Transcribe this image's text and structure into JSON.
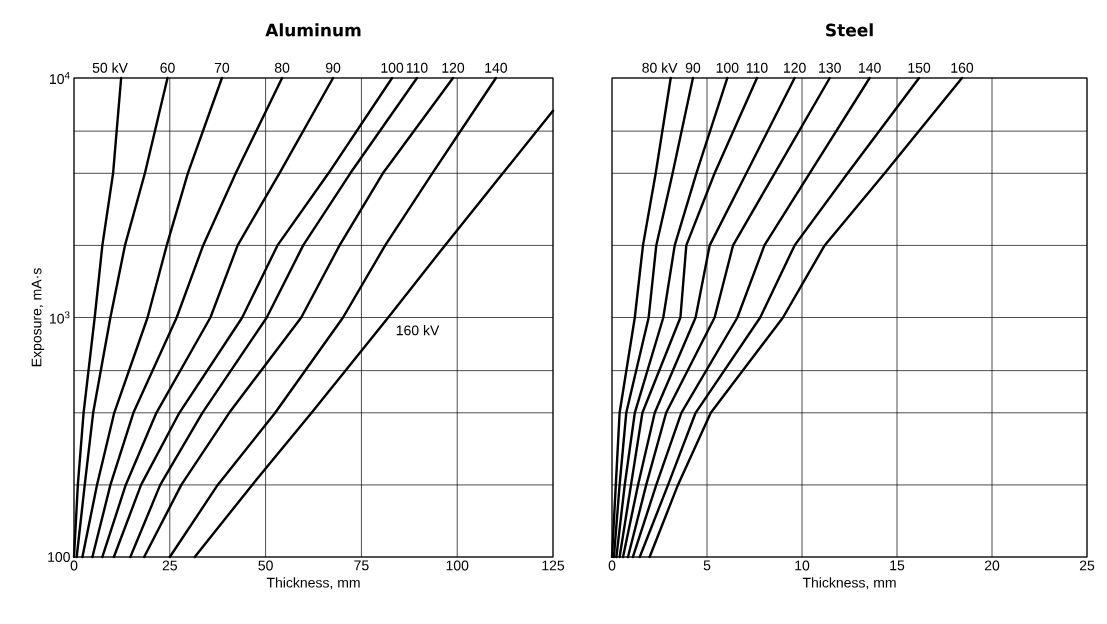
{
  "chart_data": [
    {
      "type": "line",
      "title": "Aluminum",
      "xlabel": "Thickness, mm",
      "ylabel": "Exposure, mA·s",
      "log": "y",
      "grid": true,
      "xlim": [
        0,
        125
      ],
      "xticks": [
        0,
        25,
        50,
        75,
        100,
        125
      ],
      "ylim": [
        100,
        10000
      ],
      "yticks": [
        100,
        {
          "value": 200,
          "label": null
        },
        {
          "value": 400,
          "label": null
        },
        {
          "value": 600,
          "label": null
        },
        {
          "value": 1000,
          "label": "10$^{3}$"
        },
        {
          "value": 2000,
          "label": null
        },
        {
          "value": 4000,
          "label": null
        },
        {
          "value": 6000,
          "label": null
        },
        {
          "value": 10000,
          "label": "10$^{4}$"
        }
      ],
      "series": [
        {
          "name": "50 kV",
          "color": "#000000",
          "x": [
            0,
            1.0,
            2.5,
            5.4,
            7.4,
            10.2,
            12.3
          ],
          "values": [
            100,
            200,
            400,
            1000,
            2000,
            4000,
            10000
          ]
        },
        {
          "name": "60",
          "color": "#000000",
          "x": [
            0.7,
            2.8,
            5.0,
            9.5,
            13.3,
            18.5,
            24.4
          ],
          "values": [
            100,
            200,
            400,
            1000,
            2000,
            4000,
            10000
          ]
        },
        {
          "name": "70",
          "color": "#000000",
          "x": [
            2.2,
            6.0,
            10.5,
            19.2,
            24.2,
            29.7,
            38.6
          ],
          "values": [
            100,
            200,
            400,
            1000,
            2000,
            4000,
            10000
          ]
        },
        {
          "name": "80",
          "color": "#000000",
          "x": [
            4.8,
            9.5,
            15.5,
            26.8,
            33.7,
            42.2,
            54.3
          ],
          "values": [
            100,
            200,
            400,
            1000,
            2000,
            4000,
            10000
          ]
        },
        {
          "name": "90",
          "color": "#000000",
          "x": [
            7.4,
            13.5,
            21.5,
            35.6,
            42.7,
            53.6,
            67.6
          ],
          "values": [
            100,
            200,
            400,
            1000,
            2000,
            4000,
            10000
          ]
        },
        {
          "name": "100",
          "color": "#000000",
          "x": [
            10.4,
            17.5,
            27.5,
            43.9,
            53.1,
            66.4,
            83.0
          ],
          "values": [
            100,
            200,
            400,
            1000,
            2000,
            4000,
            10000
          ]
        },
        {
          "name": "110",
          "color": "#000000",
          "x": [
            14.7,
            22.5,
            33.5,
            50.3,
            59.8,
            72.1,
            89.5
          ],
          "values": [
            100,
            200,
            400,
            1000,
            2000,
            4000,
            10000
          ]
        },
        {
          "name": "120",
          "color": "#000000",
          "x": [
            18.3,
            28.0,
            40.5,
            59.3,
            69.3,
            80.6,
            98.9
          ],
          "values": [
            100,
            200,
            400,
            1000,
            2000,
            4000,
            10000
          ]
        },
        {
          "name": "140",
          "color": "#000000",
          "x": [
            25.0,
            37.5,
            52.5,
            70.2,
            81.2,
            93.5,
            110.1
          ],
          "values": [
            100,
            200,
            400,
            1000,
            2000,
            4000,
            10000
          ]
        },
        {
          "name": "160 kV",
          "color": "#000000",
          "x": [
            31.5,
            46.5,
            62.0,
            82.0,
            96.8,
            111.9,
            125
          ],
          "values": [
            100,
            200,
            400,
            1000,
            2000,
            4000,
            7300
          ]
        }
      ]
    },
    {
      "type": "line",
      "title": "Steel",
      "xlabel": "Thickness, mm",
      "log": "y",
      "grid": true,
      "tick_labels": "x",
      "xlim": [
        0,
        25
      ],
      "xticks": [
        0,
        5,
        10,
        15,
        20,
        25
      ],
      "ylim": [
        100,
        10000
      ],
      "yticks": [
        {
          "value": 100,
          "label": null
        },
        {
          "value": 200,
          "label": null
        },
        {
          "value": 400,
          "label": null
        },
        {
          "value": 600,
          "label": null
        },
        {
          "value": 1000,
          "label": null
        },
        {
          "value": 2000,
          "label": null
        },
        {
          "value": 4000,
          "label": null
        },
        {
          "value": 6000,
          "label": null
        },
        {
          "value": 10000,
          "label": null
        }
      ],
      "series": [
        {
          "name": "80 kV",
          "color": "#000000",
          "x": [
            0.0,
            0.2,
            0.4,
            1.2,
            1.63,
            2.3,
            3.09
          ],
          "values": [
            100,
            200,
            400,
            1000,
            2000,
            4000,
            10000
          ]
        },
        {
          "name": "90",
          "color": "#000000",
          "x": [
            0.1,
            0.4,
            0.75,
            1.93,
            2.33,
            3.19,
            4.26
          ],
          "values": [
            100,
            200,
            400,
            1000,
            2000,
            4000,
            10000
          ]
        },
        {
          "name": "100",
          "color": "#000000",
          "x": [
            0.23,
            0.67,
            1.2,
            2.7,
            3.3,
            4.44,
            6.07
          ],
          "values": [
            100,
            200,
            400,
            1000,
            2000,
            4000,
            10000
          ]
        },
        {
          "name": "110",
          "color": "#000000",
          "x": [
            0.4,
            1.0,
            1.6,
            3.6,
            3.91,
            5.4,
            7.63
          ],
          "values": [
            100,
            200,
            400,
            1000,
            2000,
            4000,
            10000
          ]
        },
        {
          "name": "120",
          "color": "#000000",
          "x": [
            0.58,
            1.37,
            2.25,
            4.4,
            5.14,
            7.07,
            9.61
          ],
          "values": [
            100,
            200,
            400,
            1000,
            2000,
            4000,
            10000
          ]
        },
        {
          "name": "130",
          "color": "#000000",
          "x": [
            0.84,
            1.8,
            2.85,
            5.4,
            6.37,
            8.56,
            11.46
          ],
          "values": [
            100,
            200,
            400,
            1000,
            2000,
            4000,
            10000
          ]
        },
        {
          "name": "140",
          "color": "#000000",
          "x": [
            1.1,
            2.33,
            3.65,
            6.6,
            8.02,
            10.4,
            13.56
          ],
          "values": [
            100,
            200,
            400,
            1000,
            2000,
            4000,
            10000
          ]
        },
        {
          "name": "150",
          "color": "#000000",
          "x": [
            1.46,
            2.95,
            4.4,
            7.8,
            9.61,
            12.4,
            16.16
          ],
          "values": [
            100,
            200,
            400,
            1000,
            2000,
            4000,
            10000
          ]
        },
        {
          "name": "160",
          "color": "#000000",
          "x": [
            1.98,
            3.47,
            5.2,
            9.0,
            11.19,
            14.35,
            18.42
          ],
          "values": [
            100,
            200,
            400,
            1000,
            2000,
            4000,
            10000
          ]
        }
      ]
    }
  ]
}
